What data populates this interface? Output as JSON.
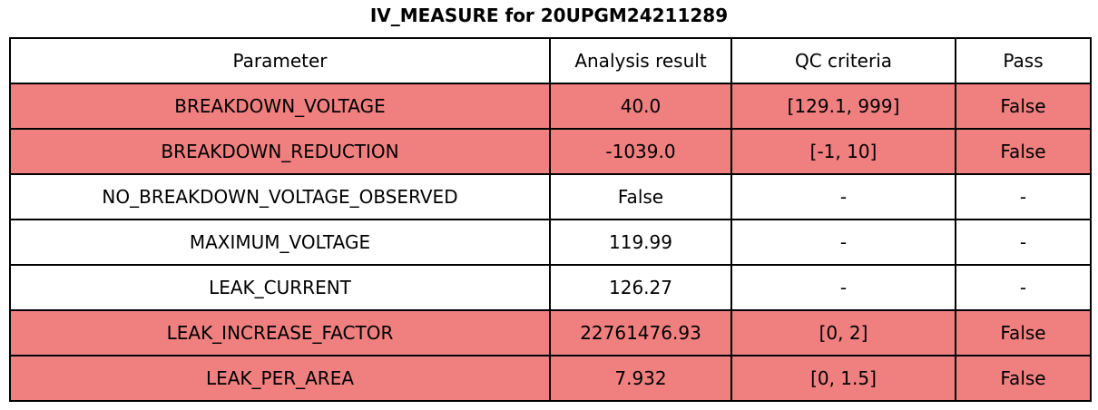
{
  "chart_data": {
    "type": "table",
    "title": "IV_MEASURE for 20UPGM24211289",
    "columns": [
      "Parameter",
      "Analysis result",
      "QC criteria",
      "Pass"
    ],
    "rows": [
      [
        "BREAKDOWN_VOLTAGE",
        "40.0",
        "[129.1, 999]",
        "False"
      ],
      [
        "BREAKDOWN_REDUCTION",
        "-1039.0",
        "[-1, 10]",
        "False"
      ],
      [
        "NO_BREAKDOWN_VOLTAGE_OBSERVED",
        "False",
        "-",
        "-"
      ],
      [
        "MAXIMUM_VOLTAGE",
        "119.99",
        "-",
        "-"
      ],
      [
        "LEAK_CURRENT",
        "126.27",
        "-",
        "-"
      ],
      [
        "LEAK_INCREASE_FACTOR",
        "22761476.93",
        "[0, 2]",
        "False"
      ],
      [
        "LEAK_PER_AREA",
        "7.932",
        "[0, 1.5]",
        "False"
      ]
    ],
    "row_failed": [
      true,
      true,
      false,
      false,
      false,
      true,
      true
    ],
    "row_bg_colors": [
      "#f08080",
      "#f08080",
      "#ffffff",
      "#ffffff",
      "#ffffff",
      "#f08080",
      "#f08080"
    ],
    "colors": {
      "fail_row_bg": "#f08080",
      "normal_row_bg": "#ffffff",
      "border": "#000000",
      "text": "#000000"
    },
    "layout": {
      "grid": "on",
      "header_position": "top",
      "title_position": "top-center"
    }
  }
}
